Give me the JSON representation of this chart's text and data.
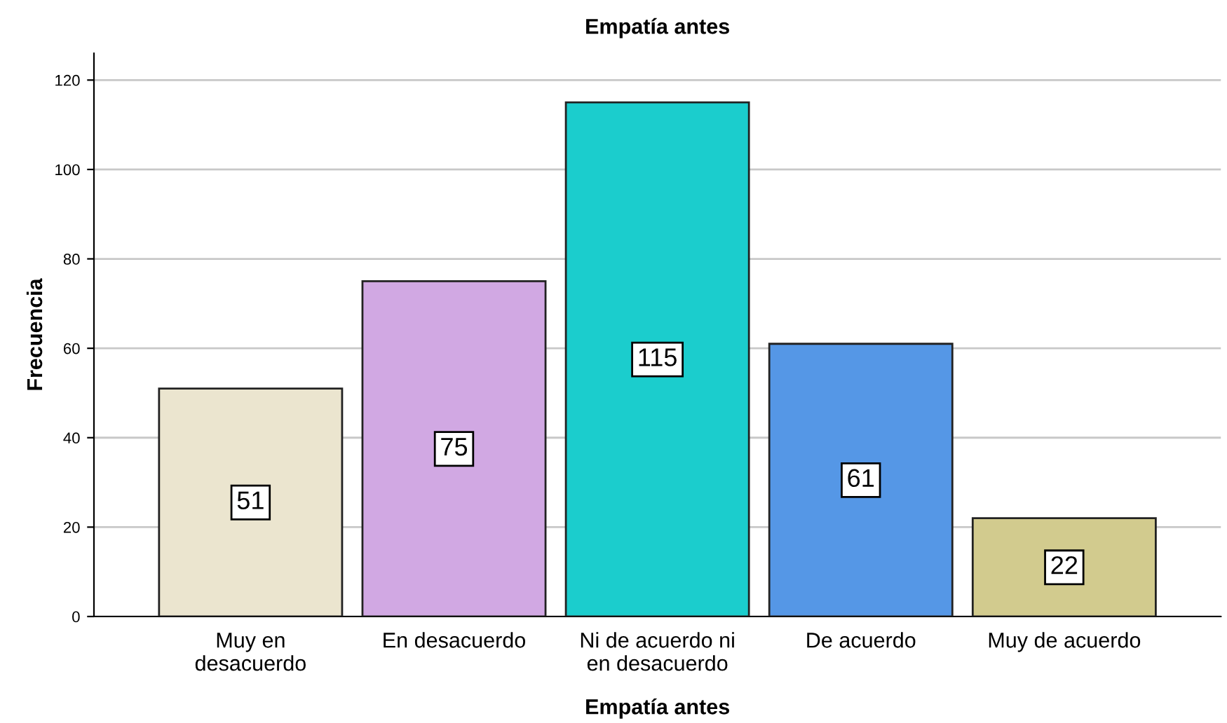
{
  "chart_data": {
    "type": "bar",
    "title": "Empatía antes",
    "xlabel": "Empatía antes",
    "ylabel": "Frecuencia",
    "categories": [
      "Muy en\ndesacuerdo",
      "En desacuerdo",
      "Ni de acuerdo ni\nen desacuerdo",
      "De acuerdo",
      "Muy de acuerdo"
    ],
    "values": [
      51,
      75,
      115,
      61,
      22
    ],
    "colors": [
      "#ebe5cf",
      "#d1a8e3",
      "#1bcdcd",
      "#5597e6",
      "#d2cb8e"
    ],
    "ylim": [
      0,
      126
    ],
    "yticks": [
      0,
      20,
      40,
      60,
      80,
      100,
      120
    ],
    "grid": "y",
    "data_labels": true
  }
}
